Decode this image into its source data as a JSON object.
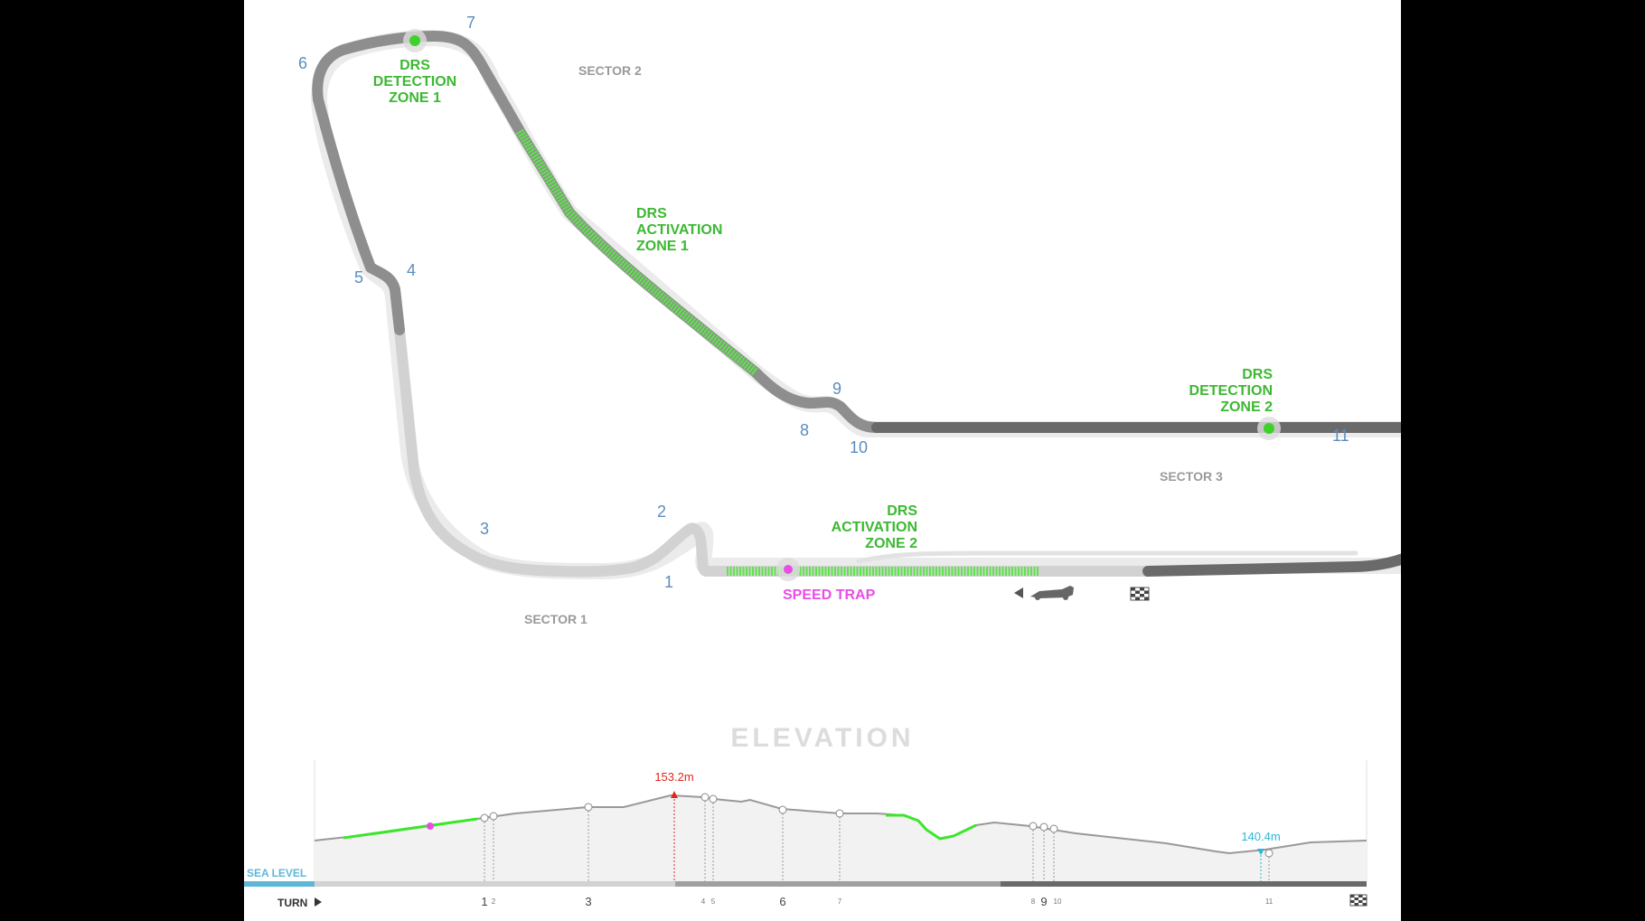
{
  "turns": [
    "1",
    "2",
    "3",
    "4",
    "5",
    "6",
    "7",
    "8",
    "9",
    "10",
    "11"
  ],
  "sectors": [
    "SECTOR 1",
    "SECTOR 2",
    "SECTOR 3"
  ],
  "drs_detection_1": [
    "DRS",
    "DETECTION",
    "ZONE 1"
  ],
  "drs_activation_1": [
    "DRS",
    "ACTIVATION",
    "ZONE 1"
  ],
  "drs_detection_2": [
    "DRS",
    "DETECTION",
    "ZONE 2"
  ],
  "drs_activation_2": [
    "DRS",
    "ACTIVATION",
    "ZONE 2"
  ],
  "speed_trap": "SPEED TRAP",
  "colors": {
    "sector1": "#d2d2d2",
    "sector2": "#8e8e8e",
    "sector3": "#6a6a6a",
    "drs": "#5fe34c",
    "speed_trap": "#e84ee6",
    "elev_max": "#e0271f",
    "elev_min": "#2ab7d8"
  },
  "icons": [
    "direction-arrow-icon",
    "f1-car-icon",
    "checkered-flag-icon"
  ],
  "elevation": {
    "title": "ELEVATION",
    "max_label": "153.2m",
    "min_label": "140.4m",
    "sea_level_label": "SEA LEVEL",
    "turn_axis_label": "TURN",
    "turn_ticks": [
      "1",
      "2",
      "3",
      "4",
      "5",
      "6",
      "7",
      "8",
      "9",
      "10",
      "11"
    ]
  }
}
